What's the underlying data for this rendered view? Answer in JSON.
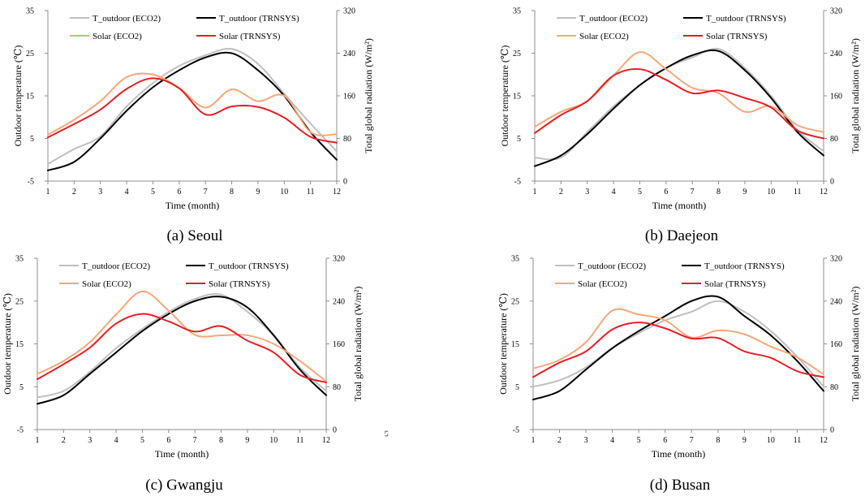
{
  "stray_mark": "ᄓ",
  "colors": {
    "t_eco2": "#bfbfbf",
    "t_trnsys": "#000000",
    "s_eco2": "#f4a77a",
    "s_trnsys": "#e31e24"
  },
  "chart_data": [
    {
      "type": "line",
      "caption": "(a)  Seoul",
      "xlabel": "Time (month)",
      "ylabel_left": "Outdoor temperature (℃)",
      "ylabel_right": "Total global radiation (W/m²)",
      "x": [
        1,
        2,
        3,
        4,
        5,
        6,
        7,
        8,
        9,
        10,
        11,
        12
      ],
      "xlim": [
        1,
        12
      ],
      "ylim_left": [
        -5,
        35
      ],
      "yticks_left": [
        -5,
        5,
        15,
        25,
        35
      ],
      "ylim_right": [
        0,
        320
      ],
      "yticks_right": [
        0,
        80,
        160,
        240,
        320
      ],
      "series": [
        {
          "name": "T_outdoor (ECO2)",
          "axis": "left",
          "values": [
            -1.0,
            2.5,
            5.5,
            12.5,
            18.0,
            22.0,
            24.5,
            26.0,
            22.5,
            15.5,
            8.5,
            2.0
          ]
        },
        {
          "name": "T_outdoor (TRNSYS)",
          "axis": "left",
          "values": [
            -2.5,
            -0.5,
            5.0,
            11.5,
            17.0,
            21.0,
            24.0,
            25.0,
            21.0,
            15.0,
            6.5,
            0.0
          ]
        },
        {
          "name": "Solar (ECO2)",
          "axis": "right",
          "values": [
            87,
            115,
            150,
            195,
            200,
            175,
            138,
            172,
            150,
            160,
            92,
            88
          ]
        },
        {
          "name": "Solar (TRNSYS)",
          "axis": "right",
          "values": [
            82,
            107,
            134,
            173,
            193,
            174,
            125,
            140,
            139,
            119,
            83,
            72
          ]
        }
      ]
    },
    {
      "type": "line",
      "caption": "(b)  Daejeon",
      "xlabel": "Time (month)",
      "ylabel_left": "Outdoor temperature (℃)",
      "ylabel_right": "Total global radiation (W/m²)",
      "x": [
        1,
        2,
        3,
        4,
        5,
        6,
        7,
        8,
        9,
        10,
        11,
        12
      ],
      "xlim": [
        1,
        12
      ],
      "ylim_left": [
        -5,
        35
      ],
      "yticks_left": [
        -5,
        5,
        15,
        25,
        35
      ],
      "ylim_right": [
        0,
        320
      ],
      "yticks_right": [
        0,
        80,
        160,
        240,
        320
      ],
      "series": [
        {
          "name": "T_outdoor (ECO2)",
          "axis": "left",
          "values": [
            0.5,
            0.5,
            6.5,
            12.5,
            17.5,
            21.5,
            24.0,
            26.0,
            21.5,
            15.0,
            7.0,
            2.0
          ]
        },
        {
          "name": "T_outdoor (TRNSYS)",
          "axis": "left",
          "values": [
            -1.5,
            1.0,
            6.0,
            12.0,
            17.5,
            21.5,
            24.5,
            25.5,
            21.0,
            14.5,
            6.5,
            1.0
          ]
        },
        {
          "name": "Solar (ECO2)",
          "axis": "right",
          "values": [
            102,
            130,
            150,
            198,
            242,
            210,
            175,
            165,
            130,
            140,
            105,
            92
          ]
        },
        {
          "name": "Solar (TRNSYS)",
          "axis": "right",
          "values": [
            90,
            124,
            150,
            198,
            210,
            190,
            165,
            170,
            156,
            138,
            95,
            80
          ]
        }
      ]
    },
    {
      "type": "line",
      "caption": "(c)  Gwangju",
      "xlabel": "Time (month)",
      "ylabel_left": "Outdoor temperature (℃)",
      "ylabel_right": "Total global radiation (W/m²)",
      "x": [
        1,
        2,
        3,
        4,
        5,
        6,
        7,
        8,
        9,
        10,
        11,
        12
      ],
      "xlim": [
        1,
        12
      ],
      "ylim_left": [
        -5,
        35
      ],
      "yticks_left": [
        -5,
        5,
        15,
        25,
        35
      ],
      "ylim_right": [
        0,
        320
      ],
      "yticks_right": [
        0,
        80,
        160,
        240,
        320
      ],
      "series": [
        {
          "name": "T_outdoor (ECO2)",
          "axis": "left",
          "values": [
            2.5,
            4.0,
            8.5,
            14.0,
            18.5,
            22.5,
            25.5,
            26.5,
            22.5,
            17.0,
            9.5,
            4.0
          ]
        },
        {
          "name": "T_outdoor (TRNSYS)",
          "axis": "left",
          "values": [
            1.0,
            3.0,
            8.0,
            13.0,
            18.0,
            22.0,
            25.0,
            26.0,
            23.5,
            17.0,
            9.0,
            3.0
          ]
        },
        {
          "name": "Solar (ECO2)",
          "axis": "right",
          "values": [
            104,
            128,
            163,
            215,
            258,
            222,
            177,
            176,
            176,
            160,
            128,
            90
          ]
        },
        {
          "name": "Solar (TRNSYS)",
          "axis": "right",
          "values": [
            94,
            122,
            153,
            198,
            216,
            202,
            183,
            193,
            166,
            144,
            102,
            88
          ]
        }
      ]
    },
    {
      "type": "line",
      "caption": "(d)  Busan",
      "xlabel": "Time (month)",
      "ylabel_left": "Outdoor temperature (℃)",
      "ylabel_right": "Total global radiation (W/m²)",
      "x": [
        1,
        2,
        3,
        4,
        5,
        6,
        7,
        8,
        9,
        10,
        11,
        12
      ],
      "xlim": [
        1,
        12
      ],
      "ylim_left": [
        -5,
        35
      ],
      "yticks_left": [
        -5,
        5,
        15,
        25,
        35
      ],
      "ylim_right": [
        0,
        320
      ],
      "yticks_right": [
        0,
        80,
        160,
        240,
        320
      ],
      "series": [
        {
          "name": "T_outdoor (ECO2)",
          "axis": "left",
          "values": [
            5.0,
            6.5,
            9.5,
            14.0,
            17.5,
            20.5,
            22.5,
            25.0,
            22.5,
            18.0,
            12.0,
            5.0
          ]
        },
        {
          "name": "T_outdoor (TRNSYS)",
          "axis": "left",
          "values": [
            2.0,
            4.0,
            9.0,
            14.0,
            18.0,
            21.5,
            25.0,
            26.0,
            21.5,
            17.0,
            11.0,
            4.0
          ]
        },
        {
          "name": "Solar (ECO2)",
          "axis": "right",
          "values": [
            114,
            130,
            163,
            222,
            215,
            204,
            172,
            185,
            178,
            155,
            135,
            103
          ]
        },
        {
          "name": "Solar (TRNSYS)",
          "axis": "right",
          "values": [
            98,
            125,
            146,
            187,
            200,
            189,
            170,
            171,
            146,
            134,
            109,
            98
          ]
        }
      ]
    }
  ]
}
